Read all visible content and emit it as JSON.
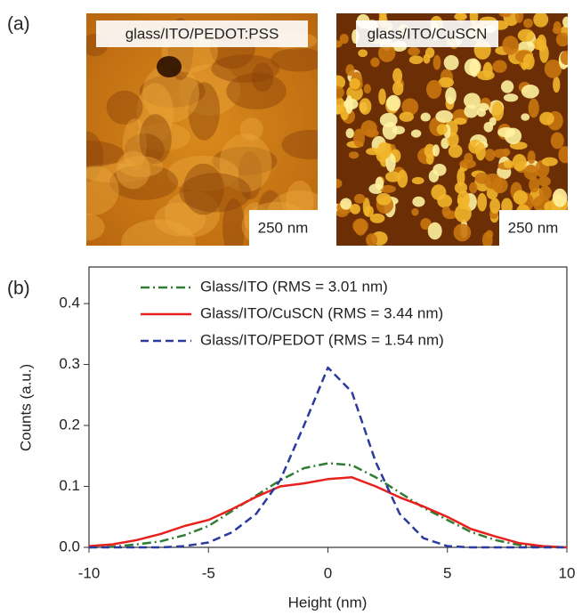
{
  "panel_labels": [
    "(a)",
    "(b)"
  ],
  "images": [
    {
      "label": "glass/ITO/PEDOT:PSS",
      "scale": "250 nm"
    },
    {
      "label": "glass/ITO/CuSCN",
      "scale": "250 nm"
    }
  ],
  "chart_data": {
    "type": "line",
    "x_label": "Height (nm)",
    "y_label": "Counts (a.u.)",
    "x": [
      -10,
      -9,
      -8,
      -7,
      -6,
      -5,
      -4,
      -3,
      -2,
      -1,
      0,
      1,
      2,
      3,
      4,
      5,
      6,
      7,
      8,
      9,
      10
    ],
    "series": [
      {
        "name": "Glass/ITO (RMS = 3.01 nm)",
        "color": "#2e7d32",
        "style": "dashdot",
        "values": [
          0,
          0.001,
          0.005,
          0.01,
          0.02,
          0.035,
          0.06,
          0.085,
          0.11,
          0.13,
          0.138,
          0.135,
          0.115,
          0.09,
          0.065,
          0.045,
          0.025,
          0.012,
          0.004,
          0.001,
          0
        ]
      },
      {
        "name": "Glass/ITO/CuSCN (RMS = 3.44 nm)",
        "color": "#e8201e",
        "style": "solid",
        "values": [
          0.002,
          0.005,
          0.012,
          0.022,
          0.035,
          0.045,
          0.063,
          0.083,
          0.1,
          0.105,
          0.112,
          0.115,
          0.1,
          0.082,
          0.067,
          0.05,
          0.03,
          0.018,
          0.007,
          0.002,
          0
        ]
      },
      {
        "name": "Glass/ITO/PEDOT (RMS = 1.54 nm)",
        "color": "#2b3a9e",
        "style": "dashed",
        "values": [
          0,
          0,
          0,
          0,
          0.002,
          0.008,
          0.025,
          0.055,
          0.11,
          0.2,
          0.295,
          0.255,
          0.14,
          0.055,
          0.015,
          0.002,
          0,
          0,
          0,
          0,
          0
        ]
      }
    ],
    "xlim": [
      -10,
      10
    ],
    "ylim": [
      0,
      0.46
    ],
    "xticks": [
      -10,
      -5,
      0,
      5,
      10
    ],
    "yticks": [
      {
        "value": 0,
        "label": "0.0"
      },
      0.1,
      0.2,
      0.3,
      0.4
    ],
    "legend": "top"
  }
}
